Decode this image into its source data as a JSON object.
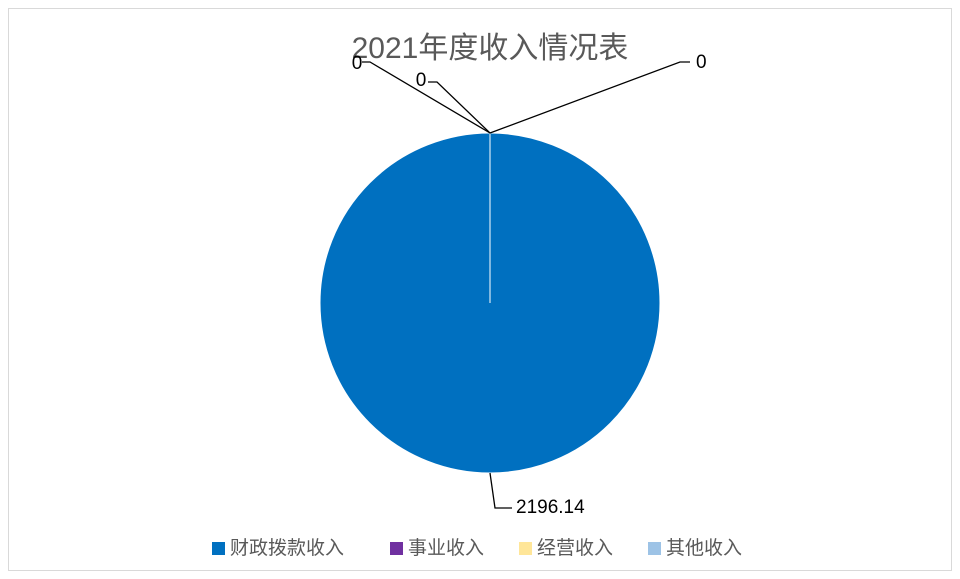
{
  "chart_data": {
    "type": "pie",
    "title": "2021年度收入情况表",
    "categories": [
      "财政拨款收入",
      "事业收入",
      "经营收入",
      "其他收入"
    ],
    "series": [
      {
        "name": "2021年度收入情况表",
        "colors": [
          "#0070c0",
          "#7030a0",
          "#ffe699",
          "#9dc3e6"
        ],
        "values": [
          2196.14,
          0,
          0,
          0
        ]
      }
    ],
    "legend": "bottom"
  }
}
